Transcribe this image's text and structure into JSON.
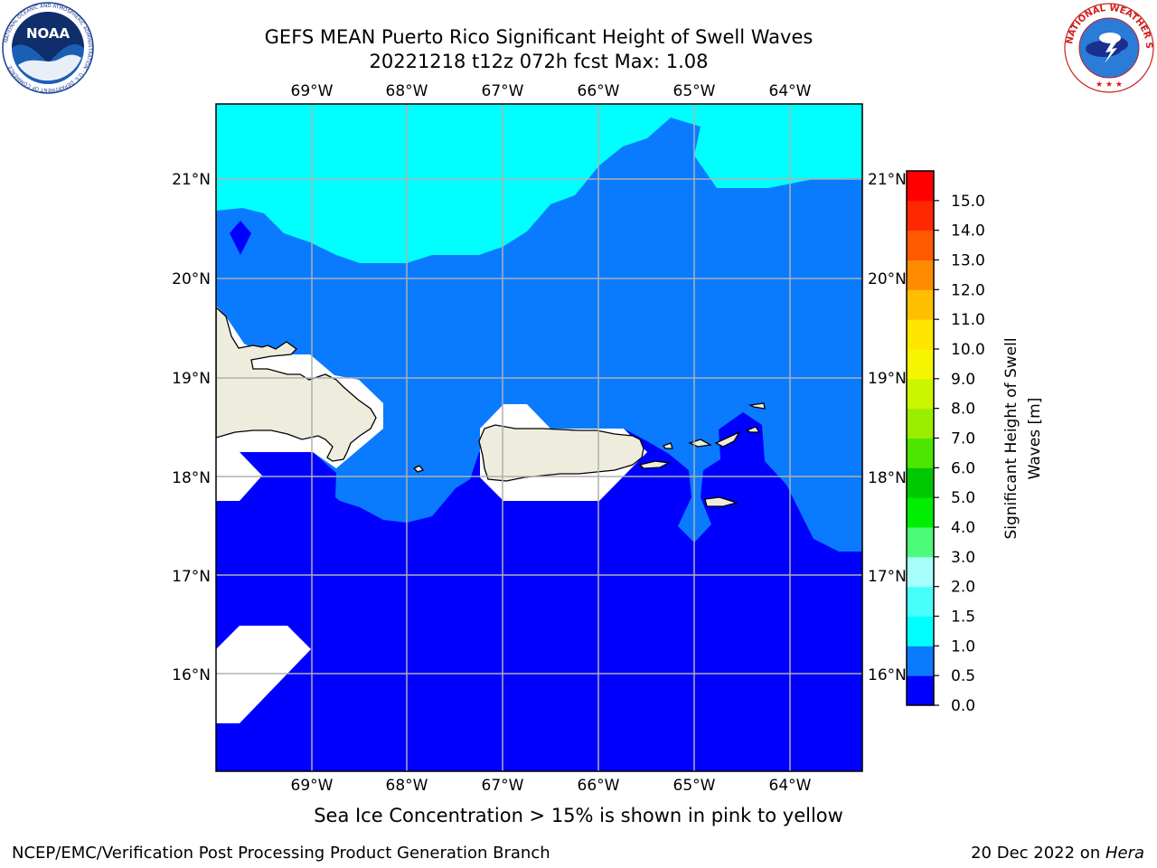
{
  "title": {
    "line1": "GEFS MEAN Puerto Rico Significant Height of Swell Waves",
    "line2": "20221218 t12z 072h fcst   Max: 1.08"
  },
  "logos": {
    "noaa": {
      "text": "NOAA",
      "ring_text": "NATIONAL OCEANIC AND ATMOSPHERIC ADMINISTRATION · U.S. DEPARTMENT OF COMMERCE"
    },
    "nws": {
      "ring_text": "NATIONAL WEATHER SERVICE"
    }
  },
  "map": {
    "lon_labels": [
      "69°W",
      "68°W",
      "67°W",
      "66°W",
      "65°W",
      "64°W"
    ],
    "lat_labels": [
      "21°N",
      "20°N",
      "19°N",
      "18°N",
      "17°N",
      "16°N"
    ],
    "colors": {
      "swell_0_0.5": "#0000ff",
      "swell_0.5_1.0": "#0a7bff",
      "swell_1.0_1.5": "#00ffff",
      "land": "#eeeddd",
      "no_data": "#ffffff",
      "grid": "#b0b0b0"
    }
  },
  "colorbar": {
    "label_line1": "Significant Height of Swell",
    "label_line2": "Waves [m]",
    "ticks": [
      "0.0",
      "0.5",
      "1.0",
      "1.5",
      "2.0",
      "3.0",
      "4.0",
      "5.0",
      "6.0",
      "7.0",
      "8.0",
      "9.0",
      "10.0",
      "11.0",
      "12.0",
      "13.0",
      "14.0",
      "15.0"
    ],
    "colors": [
      "#0000ff",
      "#0a7bff",
      "#00ffff",
      "#47fffa",
      "#a6fffa",
      "#4dfa7a",
      "#00ee00",
      "#00c800",
      "#4ce600",
      "#9bed00",
      "#ccf500",
      "#f5f500",
      "#ffe600",
      "#ffbf00",
      "#ff8c00",
      "#ff5a00",
      "#ff2800",
      "#ff0000"
    ]
  },
  "ice_note": "Sea Ice Concentration > 15% is shown in pink to yellow",
  "footer": {
    "left": "NCEP/EMC/Verification Post Processing Product Generation Branch",
    "date": "20 Dec 2022 on ",
    "machine": "Hera"
  }
}
